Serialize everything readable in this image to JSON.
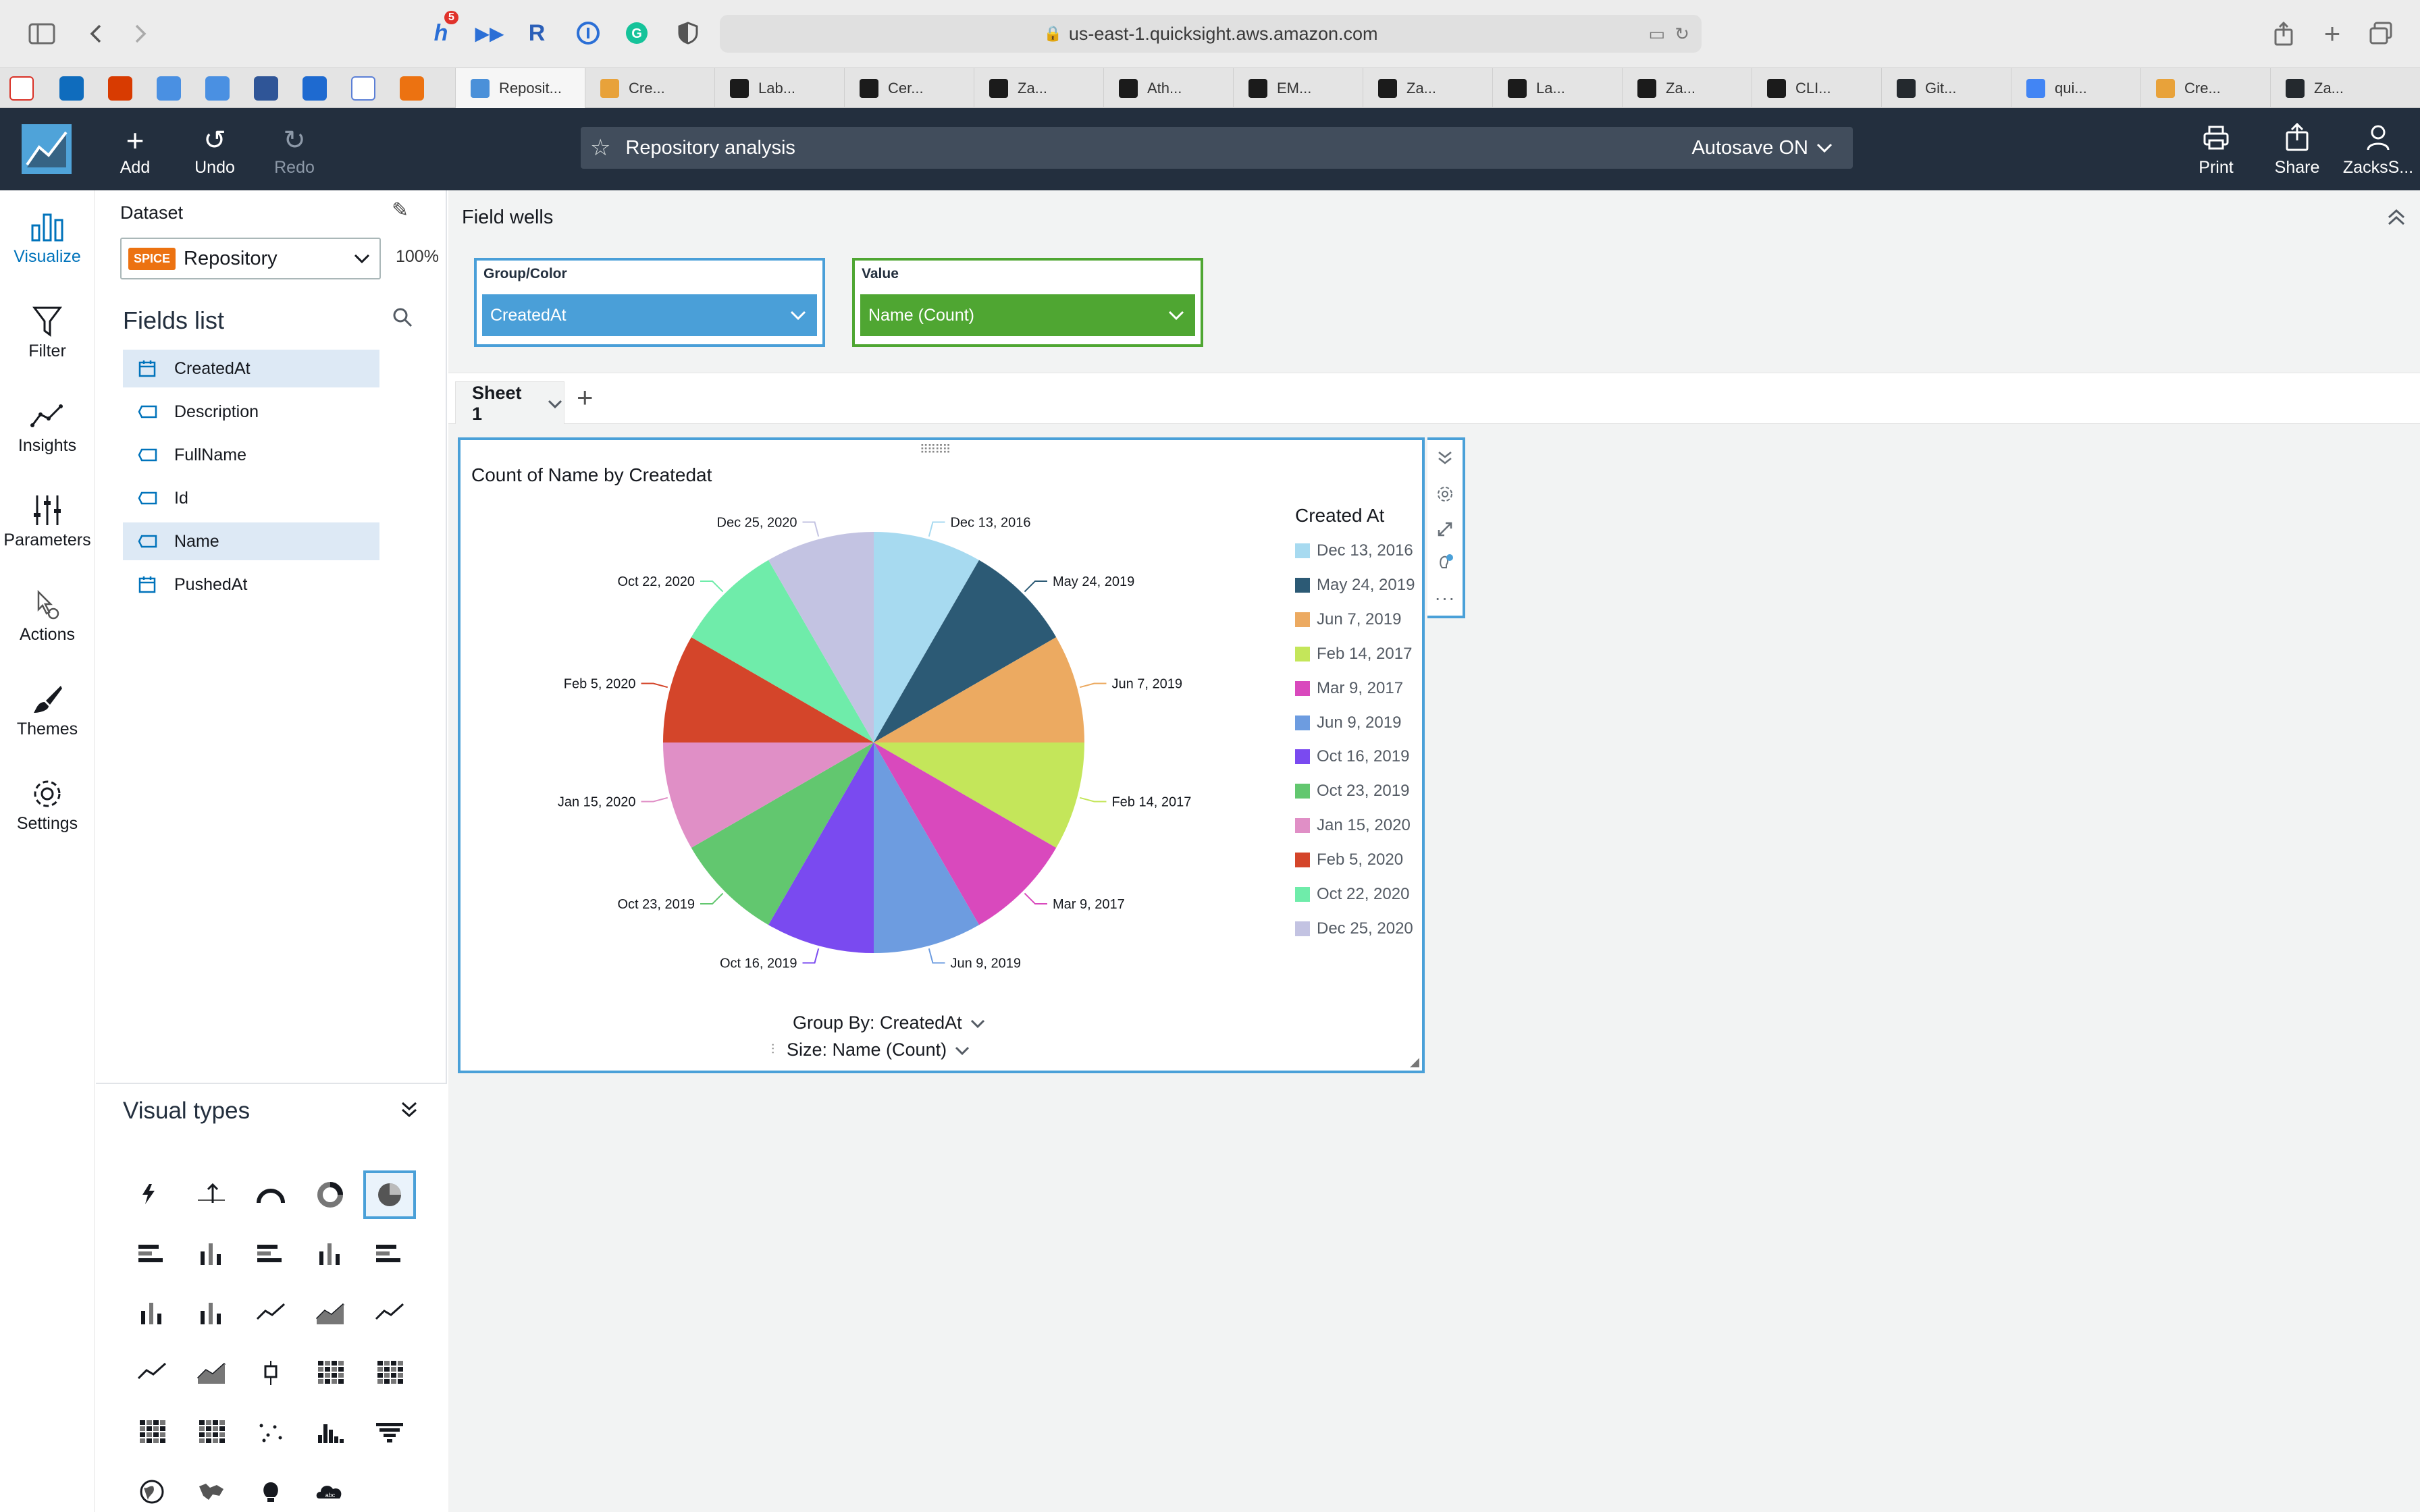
{
  "browser": {
    "url": "us-east-1.quicksight.aws.amazon.com",
    "badge_count": "5",
    "tabs": [
      {
        "label": "Reposit...",
        "color": "#4a90d9"
      },
      {
        "label": "Cre...",
        "color": "#e8a23a"
      },
      {
        "label": "Lab...",
        "color": "#1b1b1b"
      },
      {
        "label": "Cer...",
        "color": "#1b1b1b"
      },
      {
        "label": "Za...",
        "color": "#1b1b1b"
      },
      {
        "label": "Ath...",
        "color": "#1b1b1b"
      },
      {
        "label": "EM...",
        "color": "#1b1b1b"
      },
      {
        "label": "Za...",
        "color": "#1b1b1b"
      },
      {
        "label": "La...",
        "color": "#1b1b1b"
      },
      {
        "label": "Za...",
        "color": "#1b1b1b"
      },
      {
        "label": "CLI...",
        "color": "#1b1b1b"
      },
      {
        "label": "Git...",
        "color": "#24292e"
      },
      {
        "label": "qui...",
        "color": "#4285f4"
      },
      {
        "label": "Cre...",
        "color": "#e8a23a"
      },
      {
        "label": "Za...",
        "color": "#24292e"
      }
    ]
  },
  "header": {
    "add": "Add",
    "undo": "Undo",
    "redo": "Redo",
    "analysis_name": "Repository analysis",
    "autosave": "Autosave ON",
    "print": "Print",
    "share": "Share",
    "user": "ZacksS..."
  },
  "nav": {
    "visualize": "Visualize",
    "filter": "Filter",
    "insights": "Insights",
    "parameters": "Parameters",
    "actions": "Actions",
    "themes": "Themes",
    "settings": "Settings"
  },
  "dataset": {
    "label": "Dataset",
    "badge": "SPICE",
    "name": "Repository",
    "percent": "100%"
  },
  "fields_list": {
    "title": "Fields list",
    "fields": [
      {
        "name": "CreatedAt",
        "type": "date",
        "selected": true
      },
      {
        "name": "Description",
        "type": "string",
        "selected": false
      },
      {
        "name": "FullName",
        "type": "string",
        "selected": false
      },
      {
        "name": "Id",
        "type": "string",
        "selected": false
      },
      {
        "name": "Name",
        "type": "string",
        "selected": true
      },
      {
        "name": "PushedAt",
        "type": "date",
        "selected": false
      }
    ]
  },
  "visual_types": {
    "title": "Visual types"
  },
  "field_wells": {
    "title": "Field wells",
    "group_label": "Group/Color",
    "group_value": "CreatedAt",
    "value_label": "Value",
    "value_value": "Name (Count)",
    "group_color": "#4a9fd8",
    "value_color": "#4fa632"
  },
  "sheet": {
    "tab": "Sheet 1"
  },
  "visual": {
    "group_by": "Group By: CreatedAt",
    "size": "Size: Name (Count)"
  },
  "chart_data": {
    "type": "pie",
    "title": "Count of Name by Createdat",
    "legend_title": "Created At",
    "legend_position": "right",
    "categories": [
      "Dec 13, 2016",
      "May 24, 2019",
      "Jun 7, 2019",
      "Feb 14, 2017",
      "Mar 9, 2017",
      "Jun 9, 2019",
      "Oct 16, 2019",
      "Oct 23, 2019",
      "Jan 15, 2020",
      "Feb 5, 2020",
      "Oct 22, 2020",
      "Dec 25, 2020"
    ],
    "values": [
      1,
      1,
      1,
      1,
      1,
      1,
      1,
      1,
      1,
      1,
      1,
      1
    ],
    "colors": [
      "#a7daf0",
      "#2c5a75",
      "#ecaa61",
      "#c4e65a",
      "#d949bd",
      "#6d9ce0",
      "#7a4af0",
      "#62c76f",
      "#e08fc6",
      "#d4452a",
      "#6fecaa",
      "#c3c3e2"
    ]
  }
}
